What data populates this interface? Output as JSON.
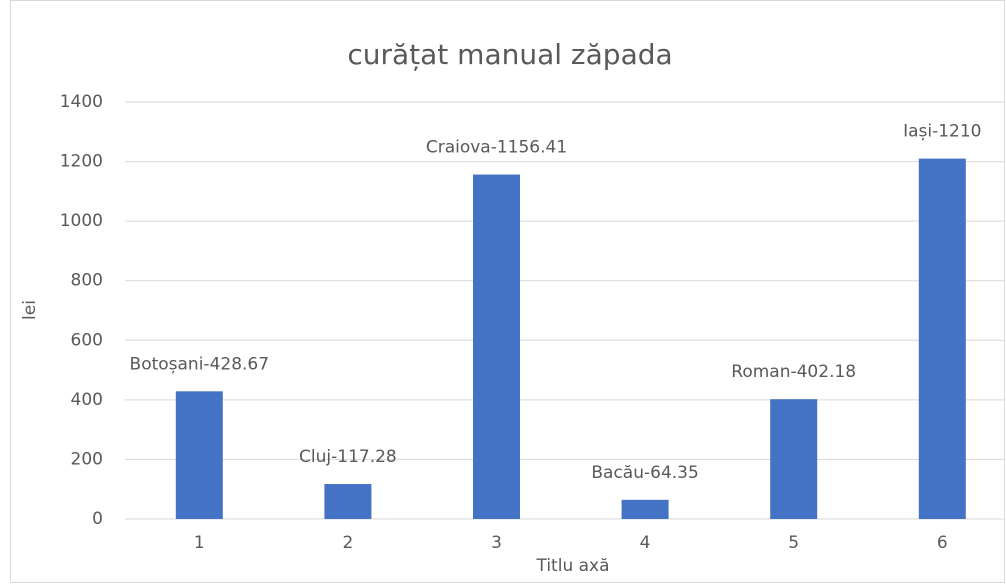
{
  "chart_data": {
    "type": "bar",
    "title": "curățat manual zăpada",
    "x_label": "Titlu axă",
    "y_label": "lei",
    "categories": [
      "1",
      "2",
      "3",
      "4",
      "5",
      "6"
    ],
    "values": [
      428.67,
      117.28,
      1156.41,
      64.35,
      402.18,
      1210
    ],
    "value_labels": [
      "Botoșani-428.67",
      "Cluj-117.28",
      "Craiova-1156.41",
      "Bacău-64.35",
      "Roman-402.18",
      "Iași-1210"
    ],
    "color": "#4472c4",
    "ylim": [
      0,
      1400
    ],
    "yticks": [
      0,
      200,
      400,
      600,
      800,
      1000,
      1200,
      1400
    ],
    "grid": true
  }
}
